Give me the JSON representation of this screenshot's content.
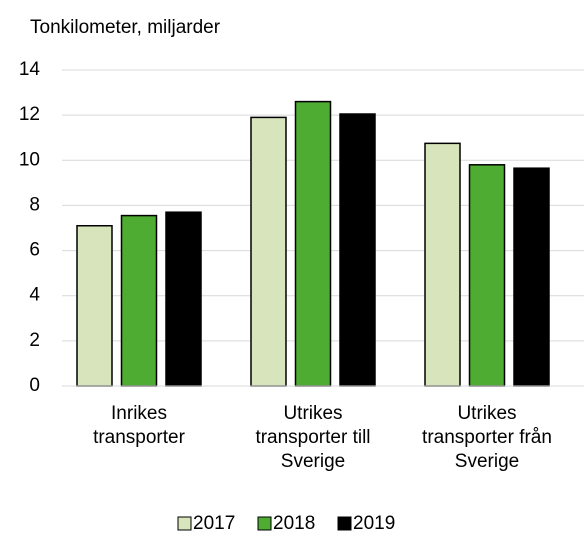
{
  "chart_data": {
    "type": "bar",
    "y_axis_label": "Tonkilometer, miljarder",
    "categories": [
      "Inrikes\ntransporter",
      "Utrikes\ntransporter till\nSverige",
      "Utrikes\ntransporter från\nSverige"
    ],
    "series": [
      {
        "name": "2017",
        "color": "#d8e4bc",
        "values": [
          7.1,
          11.9,
          10.75
        ]
      },
      {
        "name": "2018",
        "color": "#4eac33",
        "values": [
          7.55,
          12.6,
          9.8
        ]
      },
      {
        "name": "2019",
        "color": "#000000",
        "values": [
          7.7,
          12.05,
          9.65
        ]
      }
    ],
    "ylim": [
      0,
      14
    ],
    "yticks": [
      0,
      2,
      4,
      6,
      8,
      10,
      12,
      14
    ],
    "grid": true,
    "legend": "bottom"
  }
}
